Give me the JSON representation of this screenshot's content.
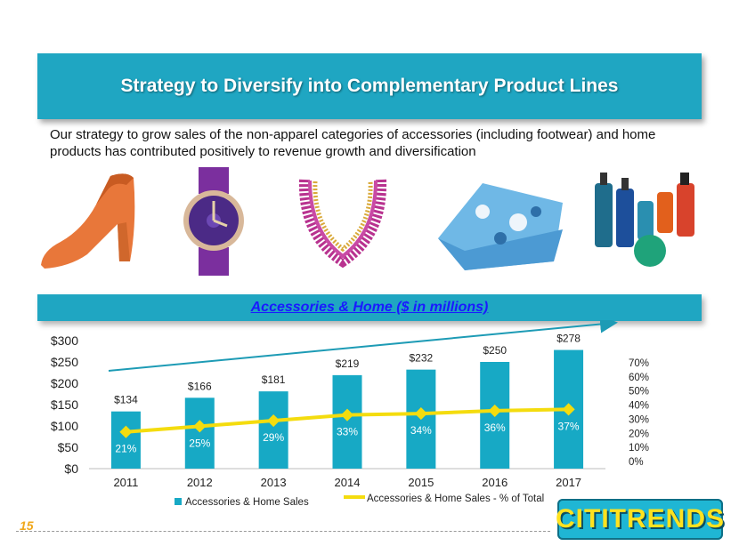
{
  "slide": {
    "title": "Strategy to Diversify into Complementary Product Lines",
    "intro": "Our strategy to grow sales of the non-apparel categories of accessories (including footwear) and home products has contributed positively to revenue growth and diversification",
    "chart_heading": "Accessories & Home ($ in millions)",
    "page_number": "15",
    "logo_text": "CITITRENDS"
  },
  "products": [
    "shoe-icon",
    "watch-icon",
    "necklace-icon",
    "blanket-icon",
    "bath-products-icon"
  ],
  "colors": {
    "accent": "#1fa6c2",
    "bar": "#17a9c5",
    "line": "#f4dc0e",
    "heading_text": "#1a1aff",
    "page_number": "#f0a81c",
    "logo_text": "#ffe21f"
  },
  "chart_data": {
    "type": "bar",
    "categories": [
      "2011",
      "2012",
      "2013",
      "2014",
      "2015",
      "2016",
      "2017"
    ],
    "series": [
      {
        "name": "Accessories & Home Sales",
        "type": "bar",
        "axis": "left",
        "values": [
          134,
          166,
          181,
          219,
          232,
          250,
          278
        ],
        "labels": [
          "$134",
          "$166",
          "$181",
          "$219",
          "$232",
          "$250",
          "$278"
        ]
      },
      {
        "name": "Accessories & Home Sales - % of Total",
        "type": "line",
        "axis": "right",
        "values": [
          21,
          25,
          29,
          33,
          34,
          36,
          37
        ],
        "labels": [
          "21%",
          "25%",
          "29%",
          "33%",
          "34%",
          "36%",
          "37%"
        ]
      }
    ],
    "ylim": [
      0,
      300
    ],
    "y_ticks": [
      "$0",
      "$50",
      "$100",
      "$150",
      "$200",
      "$250",
      "$300"
    ],
    "y2lim": [
      0,
      70
    ],
    "y2_ticks": [
      "0%",
      "10%",
      "20%",
      "30%",
      "40%",
      "50%",
      "60%",
      "70%"
    ],
    "trend_arrow": true,
    "legend": "bottom",
    "grid": false
  }
}
